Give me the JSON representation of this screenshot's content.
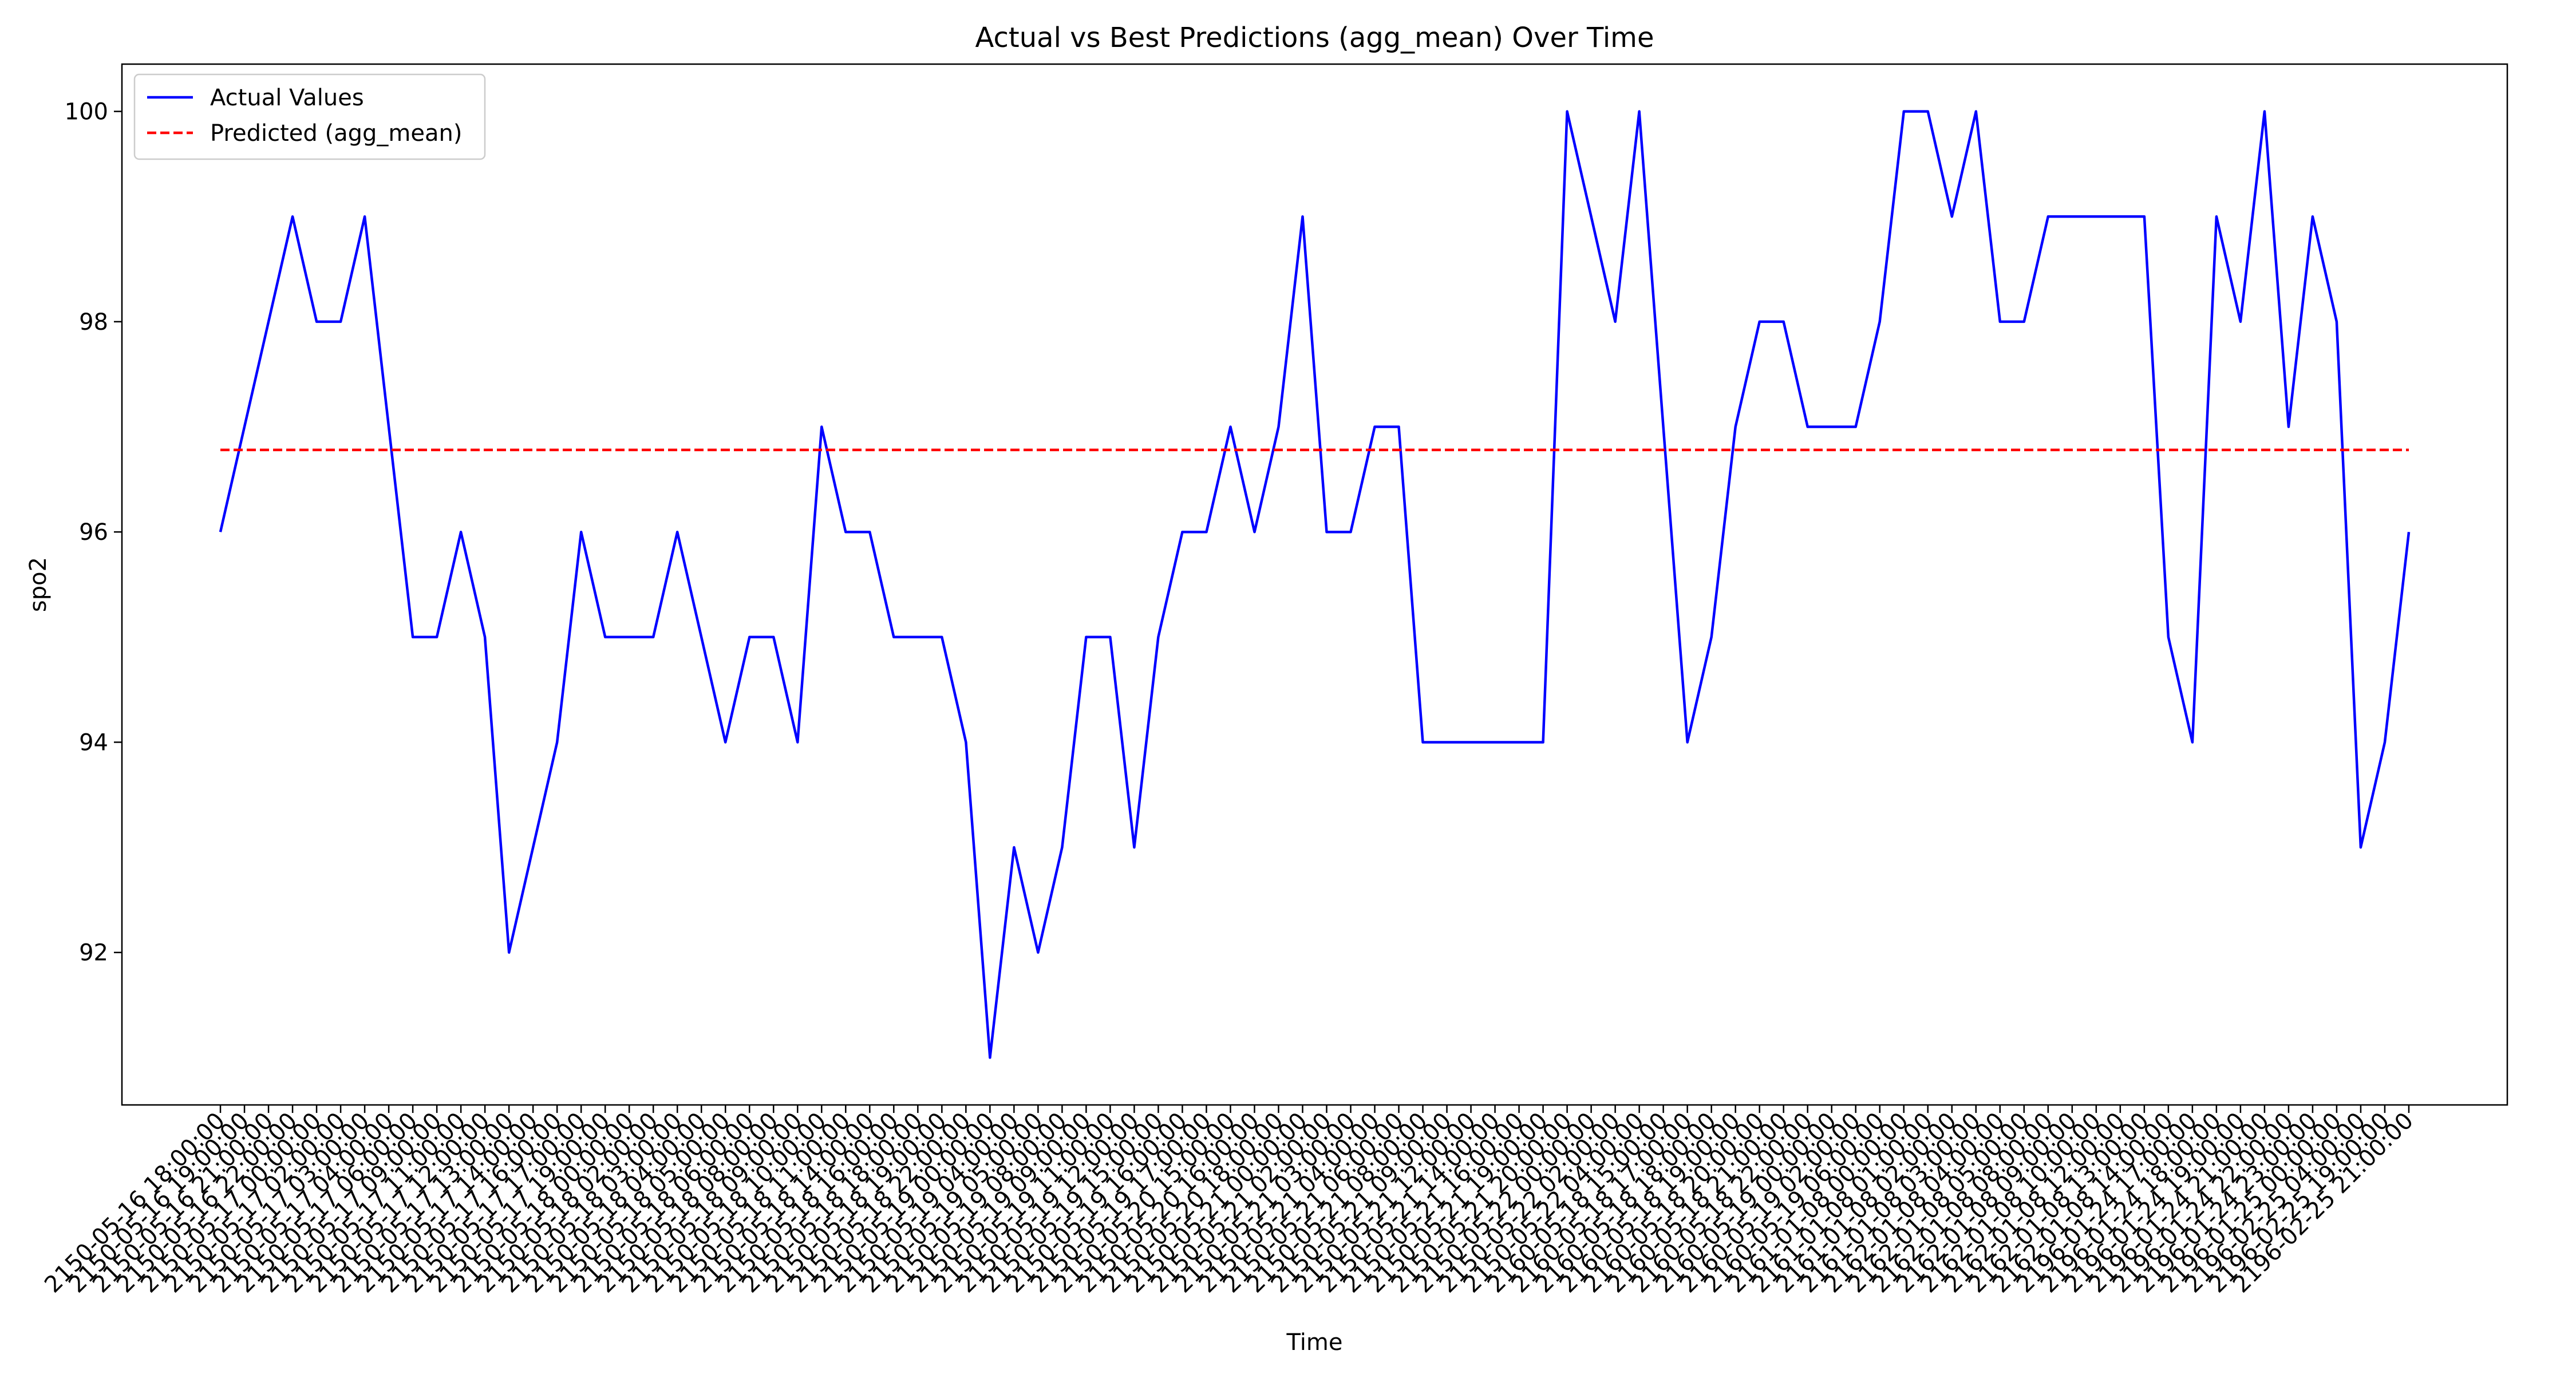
{
  "chart_data": {
    "type": "line",
    "title": "Actual vs Best Predictions (agg_mean) Over Time",
    "xlabel": "Time",
    "ylabel": "spo2",
    "ylim": [
      90.55,
      100.45
    ],
    "yticks": [
      92,
      94,
      96,
      98,
      100
    ],
    "grid": false,
    "legend_position": "top-left",
    "x": [
      "2150-05-16 18:00:00",
      "2150-05-16 19:00:00",
      "2150-05-16 21:00:00",
      "2150-05-16 22:00:00",
      "2150-05-17 00:00:00",
      "2150-05-17 02:00:00",
      "2150-05-17 03:00:00",
      "2150-05-17 04:00:00",
      "2150-05-17 06:00:00",
      "2150-05-17 09:00:00",
      "2150-05-17 11:00:00",
      "2150-05-17 12:00:00",
      "2150-05-17 13:00:00",
      "2150-05-17 14:00:00",
      "2150-05-17 16:00:00",
      "2150-05-17 17:00:00",
      "2150-05-17 19:00:00",
      "2150-05-18 00:00:00",
      "2150-05-18 02:00:00",
      "2150-05-18 03:00:00",
      "2150-05-18 04:00:00",
      "2150-05-18 05:00:00",
      "2150-05-18 06:00:00",
      "2150-05-18 08:00:00",
      "2150-05-18 09:00:00",
      "2150-05-18 10:00:00",
      "2150-05-18 11:00:00",
      "2150-05-18 14:00:00",
      "2150-05-18 16:00:00",
      "2150-05-18 18:00:00",
      "2150-05-18 19:00:00",
      "2150-05-18 22:00:00",
      "2150-05-19 00:00:00",
      "2150-05-19 04:00:00",
      "2150-05-19 05:00:00",
      "2150-05-19 08:00:00",
      "2150-05-19 09:00:00",
      "2150-05-19 11:00:00",
      "2150-05-19 12:00:00",
      "2150-05-19 15:00:00",
      "2150-05-19 16:00:00",
      "2150-05-19 17:00:00",
      "2150-05-20 15:00:00",
      "2150-05-20 16:00:00",
      "2150-05-20 18:00:00",
      "2150-05-21 00:00:00",
      "2150-05-21 02:00:00",
      "2150-05-21 03:00:00",
      "2150-05-21 04:00:00",
      "2150-05-21 06:00:00",
      "2150-05-21 08:00:00",
      "2150-05-21 09:00:00",
      "2150-05-21 12:00:00",
      "2150-05-21 14:00:00",
      "2150-05-21 16:00:00",
      "2150-05-21 19:00:00",
      "2150-05-21 20:00:00",
      "2150-05-22 00:00:00",
      "2150-05-22 02:00:00",
      "2150-05-22 04:00:00",
      "2160-05-18 15:00:00",
      "2160-05-18 17:00:00",
      "2160-05-18 18:00:00",
      "2160-05-18 19:00:00",
      "2160-05-18 20:00:00",
      "2160-05-18 21:00:00",
      "2160-05-18 22:00:00",
      "2160-05-19 00:00:00",
      "2160-05-19 02:00:00",
      "2160-05-19 06:00:00",
      "2161-01-08 00:00:00",
      "2161-01-08 01:00:00",
      "2161-01-08 02:00:00",
      "2161-01-08 03:00:00",
      "2162-01-08 04:00:00",
      "2162-01-08 05:00:00",
      "2162-01-08 08:00:00",
      "2162-01-08 09:00:00",
      "2162-01-08 10:00:00",
      "2162-01-08 12:00:00",
      "2162-01-08 13:00:00",
      "2162-01-08 14:00:00",
      "2196-01-24 17:00:00",
      "2196-01-24 18:00:00",
      "2196-01-24 19:00:00",
      "2196-01-24 21:00:00",
      "2196-01-24 22:00:00",
      "2196-01-24 23:00:00",
      "2196-01-25 00:00:00",
      "2196-02-25 04:00:00",
      "2196-02-25 19:00:00",
      "2196-02-25 21:00:00"
    ],
    "series": [
      {
        "name": "Actual Values",
        "color": "#0000ff",
        "style": "solid",
        "values": [
          96,
          97,
          98,
          99,
          98,
          98,
          99,
          97,
          95,
          95,
          96,
          95,
          92,
          93,
          94,
          96,
          95,
          95,
          95,
          96,
          95,
          94,
          95,
          95,
          94,
          97,
          96,
          96,
          95,
          95,
          95,
          94,
          91,
          93,
          92,
          93,
          95,
          95,
          93,
          95,
          96,
          96,
          97,
          96,
          97,
          99,
          96,
          96,
          97,
          97,
          94,
          94,
          94,
          94,
          94,
          94,
          100,
          99,
          98,
          100,
          97,
          94,
          95,
          97,
          98,
          98,
          97,
          97,
          97,
          98,
          100,
          100,
          99,
          100,
          98,
          98,
          99,
          99,
          99,
          99,
          99,
          95,
          94,
          99,
          98,
          100,
          97,
          99,
          98,
          93,
          94,
          96
        ]
      },
      {
        "name": "Predicted (agg_mean)",
        "color": "#ff0000",
        "style": "dashed",
        "constant": 96.78
      }
    ]
  }
}
